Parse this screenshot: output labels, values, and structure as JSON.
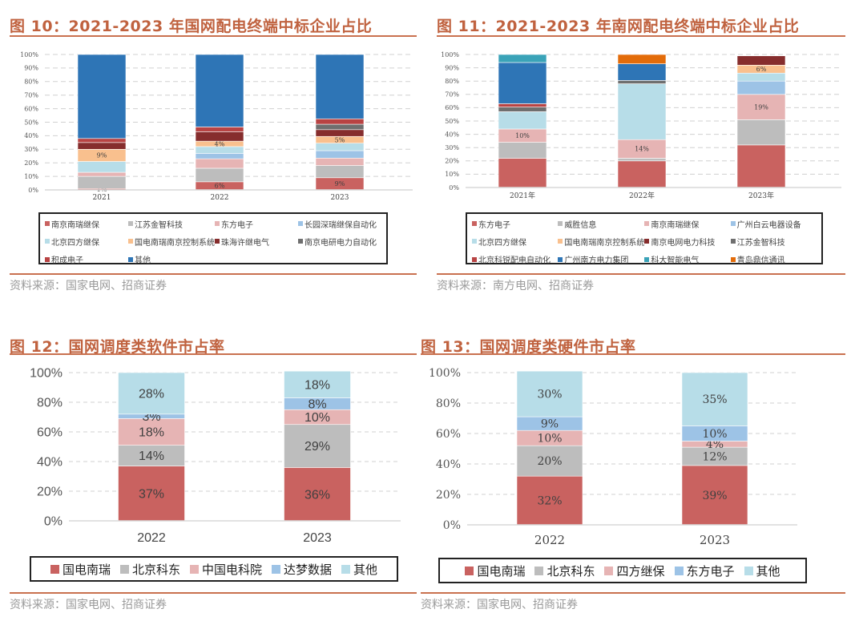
{
  "figures": [
    {
      "title": "图 10：2021-2023 年国网配电终端中标企业占比",
      "source": "资料来源：国家电网、招商证券"
    },
    {
      "title": "图 11：2021-2023 年南网配电终端中标企业占比",
      "source": "资料来源：南方电网、招商证券"
    },
    {
      "title": "图 12：国网调度类软件市占率",
      "source": "资料来源：国家电网、招商证券"
    },
    {
      "title": "图 13：国网调度类硬件市占率",
      "source": "资料来源：国家电网、招商证券"
    }
  ],
  "chart_data": [
    {
      "type": "bar",
      "stacked": true,
      "title": "2021-2023 年国网配电终端中标企业占比",
      "categories": [
        "2021",
        "2022",
        "2023"
      ],
      "ylim": [
        0,
        100
      ],
      "yticks": [
        "0%",
        "10%",
        "20%",
        "30%",
        "40%",
        "50%",
        "60%",
        "70%",
        "80%",
        "90%",
        "100%"
      ],
      "grid": true,
      "legend_position": "bottom",
      "series": [
        {
          "name": "南京南瑞继保",
          "color": "#c96260",
          "values": [
            1,
            6,
            9
          ],
          "labels": [
            "1%",
            "6%",
            "9%"
          ]
        },
        {
          "name": "江苏金智科技",
          "color": "#bdbdbd",
          "values": [
            9,
            10,
            9
          ],
          "labels": [
            "",
            "",
            ""
          ]
        },
        {
          "name": "东方电子",
          "color": "#e6b4b4",
          "values": [
            3,
            7,
            5.5
          ],
          "labels": [
            "",
            "",
            ""
          ]
        },
        {
          "name": "长园深瑞继保自动化",
          "color": "#9dc3e6",
          "values": [
            0,
            4,
            5.5
          ],
          "labels": [
            "",
            "",
            ""
          ]
        },
        {
          "name": "北京四方继保",
          "color": "#b7dde8",
          "values": [
            8,
            5,
            5.5
          ],
          "labels": [
            "",
            "",
            ""
          ]
        },
        {
          "name": "国电南瑞南京控制系统",
          "color": "#f9c08e",
          "values": [
            9,
            4,
            5
          ],
          "labels": [
            "9%",
            "4%",
            "5%"
          ]
        },
        {
          "name": "珠海许继电气",
          "color": "#862d2d",
          "values": [
            5,
            7,
            5
          ],
          "labels": [
            "",
            "",
            ""
          ]
        },
        {
          "name": "南京电研电力自动化",
          "color": "#6f6f6f",
          "values": [
            0,
            0,
            4
          ],
          "labels": [
            "",
            "",
            ""
          ]
        },
        {
          "name": "积成电子",
          "color": "#b84343",
          "values": [
            3,
            3.5,
            4
          ],
          "labels": [
            "",
            "",
            ""
          ]
        },
        {
          "name": "其他",
          "color": "#2e75b6",
          "values": [
            62,
            53.5,
            47.5
          ],
          "labels": [
            "",
            "",
            ""
          ]
        }
      ]
    },
    {
      "type": "bar",
      "stacked": true,
      "title": "2021-2023 年南网配电终端中标企业占比",
      "categories": [
        "2021年",
        "2022年",
        "2023年"
      ],
      "ylim": [
        0,
        100
      ],
      "yticks": [
        "0%",
        "10%",
        "20%",
        "30%",
        "40%",
        "50%",
        "60%",
        "70%",
        "80%",
        "90%",
        "100%"
      ],
      "grid": true,
      "legend_position": "bottom",
      "series": [
        {
          "name": "东方电子",
          "color": "#c96260",
          "values": [
            22,
            20,
            32
          ],
          "labels": [
            "",
            "",
            ""
          ]
        },
        {
          "name": "威胜信息",
          "color": "#bdbdbd",
          "values": [
            12,
            2,
            19
          ],
          "labels": [
            "",
            "",
            ""
          ]
        },
        {
          "name": "南京南瑞继保",
          "color": "#e6b4b4",
          "values": [
            10,
            14,
            19
          ],
          "labels": [
            "10%",
            "14%",
            "19%"
          ]
        },
        {
          "name": "广州白云电器设备",
          "color": "#9dc3e6",
          "values": [
            0,
            0,
            10
          ],
          "labels": [
            "",
            "",
            ""
          ]
        },
        {
          "name": "北京四方继保",
          "color": "#b7dde8",
          "values": [
            13,
            42,
            6
          ],
          "labels": [
            "",
            "",
            ""
          ]
        },
        {
          "name": "国电南瑞南京控制系统",
          "color": "#f9c08e",
          "values": [
            0,
            0,
            6
          ],
          "labels": [
            "",
            "",
            "6%"
          ]
        },
        {
          "name": "南京电网电力科技",
          "color": "#862d2d",
          "values": [
            0,
            0,
            7
          ],
          "labels": [
            "",
            "",
            ""
          ]
        },
        {
          "name": "江苏金智科技",
          "color": "#6f6f6f",
          "values": [
            3.5,
            2.5,
            0
          ],
          "labels": [
            "",
            "",
            ""
          ]
        },
        {
          "name": "北京科锐配电自动化",
          "color": "#b84343",
          "values": [
            2.5,
            0,
            0
          ],
          "labels": [
            "",
            "",
            ""
          ]
        },
        {
          "name": "广州南方电力集团",
          "color": "#2e75b6",
          "values": [
            31,
            12.5,
            0
          ],
          "labels": [
            "",
            "",
            ""
          ]
        },
        {
          "name": "科大智能电气",
          "color": "#3aa3b8",
          "values": [
            6,
            0,
            0
          ],
          "labels": [
            "",
            "",
            ""
          ]
        },
        {
          "name": "青岛鼎信通讯",
          "color": "#e36c0a",
          "values": [
            0,
            7,
            0
          ],
          "labels": [
            "",
            "",
            ""
          ]
        }
      ]
    },
    {
      "type": "bar",
      "stacked": true,
      "title": "国网调度类软件市占率",
      "categories": [
        "2022",
        "2023"
      ],
      "ylim": [
        0,
        100
      ],
      "yticks": [
        "0%",
        "20%",
        "40%",
        "60%",
        "80%",
        "100%"
      ],
      "grid": true,
      "legend_position": "bottom",
      "series": [
        {
          "name": "国电南瑞",
          "color": "#c96260",
          "values": [
            37,
            36
          ],
          "labels": [
            "37%",
            "36%"
          ]
        },
        {
          "name": "北京科东",
          "color": "#bdbdbd",
          "values": [
            14,
            29
          ],
          "labels": [
            "14%",
            "29%"
          ]
        },
        {
          "name": "中国电科院",
          "color": "#e6b4b4",
          "values": [
            18,
            10
          ],
          "labels": [
            "18%",
            "10%"
          ]
        },
        {
          "name": "达梦数据",
          "color": "#9dc3e6",
          "values": [
            3,
            8
          ],
          "labels": [
            "3%",
            "8%"
          ]
        },
        {
          "name": "其他",
          "color": "#b7dde8",
          "values": [
            28,
            18
          ],
          "labels": [
            "28%",
            "18%"
          ]
        }
      ]
    },
    {
      "type": "bar",
      "stacked": true,
      "title": "国网调度类硬件市占率",
      "categories": [
        "2022",
        "2023"
      ],
      "ylim": [
        0,
        100
      ],
      "yticks": [
        "0%",
        "20%",
        "40%",
        "60%",
        "80%",
        "100%"
      ],
      "grid": true,
      "legend_position": "bottom",
      "series": [
        {
          "name": "国电南瑞",
          "color": "#c96260",
          "values": [
            32,
            39
          ],
          "labels": [
            "32%",
            "39%"
          ]
        },
        {
          "name": "北京科东",
          "color": "#bdbdbd",
          "values": [
            20,
            12
          ],
          "labels": [
            "20%",
            "12%"
          ]
        },
        {
          "name": "四方继保",
          "color": "#e6b4b4",
          "values": [
            10,
            4
          ],
          "labels": [
            "10%",
            "4%"
          ]
        },
        {
          "name": "东方电子",
          "color": "#9dc3e6",
          "values": [
            9,
            10
          ],
          "labels": [
            "9%",
            "10%"
          ]
        },
        {
          "name": "其他",
          "color": "#b7dde8",
          "values": [
            30,
            35
          ],
          "labels": [
            "30%",
            "35%"
          ]
        }
      ]
    }
  ]
}
